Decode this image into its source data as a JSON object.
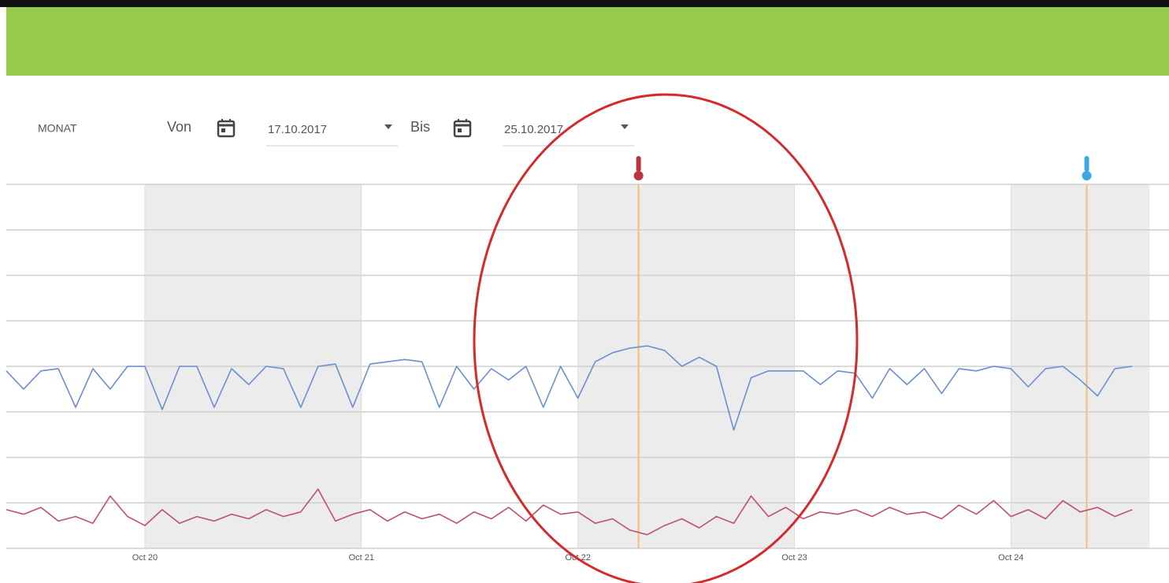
{
  "toolbar": {
    "period": "MONAT",
    "from_label": "Von",
    "from_date": "17.10.2017",
    "to_label": "Bis",
    "to_date": "25.10.2017"
  },
  "chart_data": {
    "type": "line",
    "x": [
      19.36,
      19.44,
      19.52,
      19.6,
      19.68,
      19.76,
      19.84,
      19.92,
      20,
      20.08,
      20.16,
      20.24,
      20.32,
      20.4,
      20.48,
      20.56,
      20.64,
      20.72,
      20.8,
      20.88,
      20.96,
      21.04,
      21.12,
      21.2,
      21.28,
      21.36,
      21.44,
      21.52,
      21.6,
      21.68,
      21.76,
      21.84,
      21.92,
      22,
      22.08,
      22.16,
      22.24,
      22.32,
      22.4,
      22.48,
      22.56,
      22.64,
      22.72,
      22.8,
      22.88,
      22.96,
      23.04,
      23.12,
      23.2,
      23.28,
      23.36,
      23.44,
      23.52,
      23.6,
      23.68,
      23.76,
      23.84,
      23.92,
      24,
      24.08,
      24.16,
      24.24,
      24.32,
      24.4,
      24.48,
      24.56
    ],
    "xlim": [
      19.36,
      24.73
    ],
    "xticks": [
      {
        "value": 20,
        "label": "Oct 20"
      },
      {
        "value": 21,
        "label": "Oct 21"
      },
      {
        "value": 22,
        "label": "Oct 22"
      },
      {
        "value": 23,
        "label": "Oct 23"
      },
      {
        "value": 24,
        "label": "Oct 24"
      }
    ],
    "ylim": [
      0,
      8
    ],
    "yticks": [
      0,
      1,
      2,
      3,
      4,
      5,
      6,
      7,
      8
    ],
    "grid": true,
    "bands": [
      [
        20,
        21
      ],
      [
        22,
        23
      ],
      [
        24,
        24.64
      ]
    ],
    "events": [
      {
        "x": 22.28,
        "color": "#b8343f"
      },
      {
        "x": 24.35,
        "color": "#3ca7e0"
      }
    ],
    "series": [
      {
        "color": "#6a8fd0",
        "values": [
          3.9,
          3.5,
          3.9,
          3.95,
          3.1,
          3.95,
          3.5,
          4.0,
          4.0,
          3.05,
          4.0,
          4.0,
          3.1,
          3.95,
          3.6,
          4.0,
          3.95,
          3.1,
          4.0,
          4.05,
          3.1,
          4.05,
          4.1,
          4.15,
          4.1,
          3.1,
          4.0,
          3.5,
          3.95,
          3.7,
          4.0,
          3.1,
          4.0,
          3.3,
          4.1,
          4.3,
          4.4,
          4.45,
          4.35,
          4.0,
          4.2,
          4.0,
          2.6,
          3.75,
          3.9,
          3.9,
          3.9,
          3.6,
          3.9,
          3.85,
          3.3,
          3.95,
          3.6,
          3.95,
          3.4,
          3.95,
          3.9,
          4.0,
          3.95,
          3.55,
          3.95,
          4.0,
          3.7,
          3.35,
          3.95,
          4.0
        ]
      },
      {
        "color": "#c0506a",
        "values": [
          0.85,
          0.75,
          0.9,
          0.6,
          0.7,
          0.55,
          1.15,
          0.7,
          0.5,
          0.85,
          0.55,
          0.7,
          0.6,
          0.75,
          0.65,
          0.85,
          0.7,
          0.8,
          1.3,
          0.6,
          0.75,
          0.85,
          0.6,
          0.8,
          0.65,
          0.75,
          0.55,
          0.8,
          0.65,
          0.9,
          0.6,
          0.95,
          0.75,
          0.8,
          0.55,
          0.65,
          0.4,
          0.3,
          0.5,
          0.65,
          0.45,
          0.7,
          0.55,
          1.15,
          0.7,
          0.9,
          0.65,
          0.8,
          0.75,
          0.85,
          0.7,
          0.9,
          0.75,
          0.8,
          0.65,
          0.95,
          0.75,
          1.05,
          0.7,
          0.85,
          0.65,
          1.05,
          0.8,
          0.9,
          0.7,
          0.85
        ]
      }
    ]
  }
}
